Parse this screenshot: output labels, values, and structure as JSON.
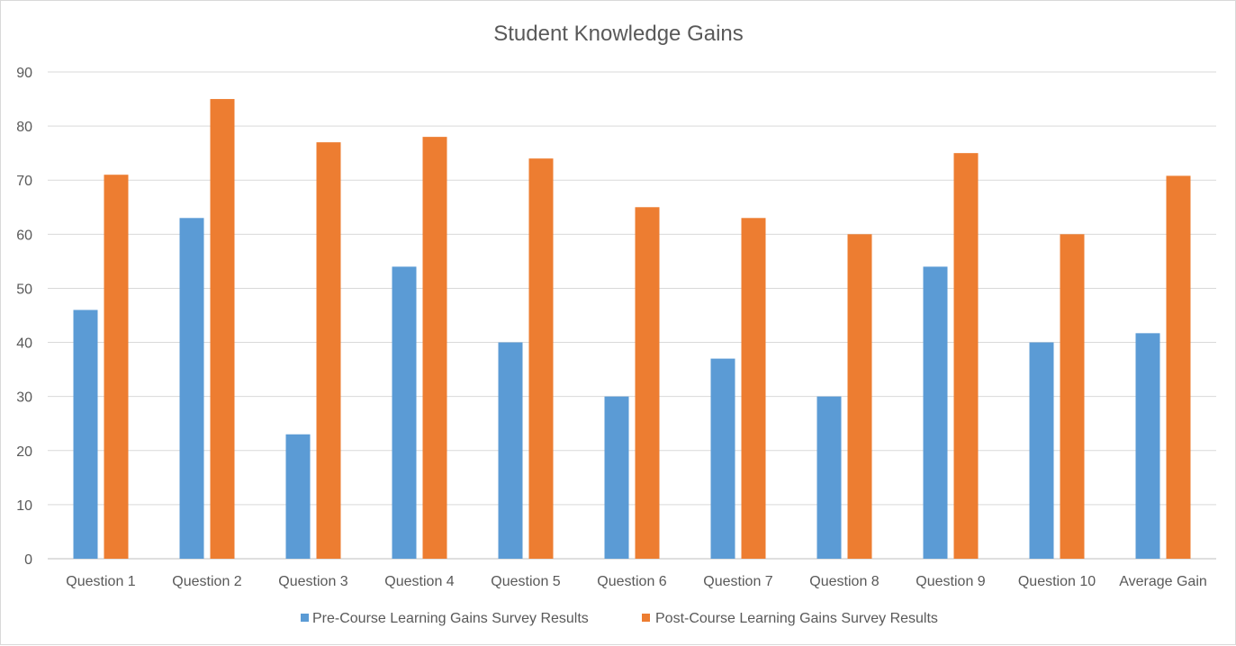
{
  "chart_data": {
    "type": "bar",
    "title": "Student Knowledge Gains",
    "xlabel": "",
    "ylabel": "",
    "ylim": [
      0,
      90
    ],
    "yticks": [
      0,
      10,
      20,
      30,
      40,
      50,
      60,
      70,
      80,
      90
    ],
    "grid": true,
    "legend_position": "bottom",
    "categories": [
      "Question 1",
      "Question 2",
      "Question 3",
      "Question 4",
      "Question 5",
      "Question 6",
      "Question 7",
      "Question 8",
      "Question 9",
      "Question 10",
      "Average Gain"
    ],
    "series": [
      {
        "name": "Pre-Course Learning Gains Survey Results",
        "color": "#5b9bd5",
        "values": [
          46,
          63,
          23,
          54,
          40,
          30,
          37,
          30,
          54,
          40,
          41.7
        ]
      },
      {
        "name": "Post-Course Learning Gains Survey Results",
        "color": "#ed7d31",
        "values": [
          71,
          85,
          77,
          78,
          74,
          65,
          63,
          60,
          75,
          60,
          70.8
        ]
      }
    ]
  }
}
